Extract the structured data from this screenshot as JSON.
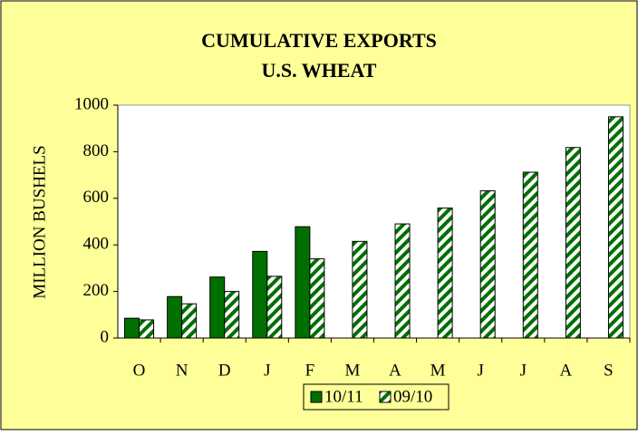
{
  "chart_data": {
    "type": "bar",
    "title": [
      "CUMULATIVE EXPORTS",
      "U.S. WHEAT"
    ],
    "y_label": "MILLION BUSHELS",
    "categories": [
      "O",
      "N",
      "D",
      "J",
      "F",
      "M",
      "A",
      "M",
      "J",
      "J",
      "A",
      "S"
    ],
    "series": [
      {
        "name": "10/11",
        "color": "#007000",
        "hatch": false,
        "values": [
          85,
          178,
          262,
          372,
          478,
          null,
          null,
          null,
          null,
          null,
          null,
          null
        ]
      },
      {
        "name": "09/10",
        "color": "#007000",
        "hatch": true,
        "values": [
          78,
          147,
          200,
          265,
          340,
          415,
          490,
          558,
          632,
          712,
          818,
          950
        ]
      }
    ],
    "ylim": [
      0,
      1000
    ],
    "yticks": [
      0,
      200,
      400,
      600,
      800,
      1000
    ],
    "grid": false,
    "legend": "bottom"
  }
}
